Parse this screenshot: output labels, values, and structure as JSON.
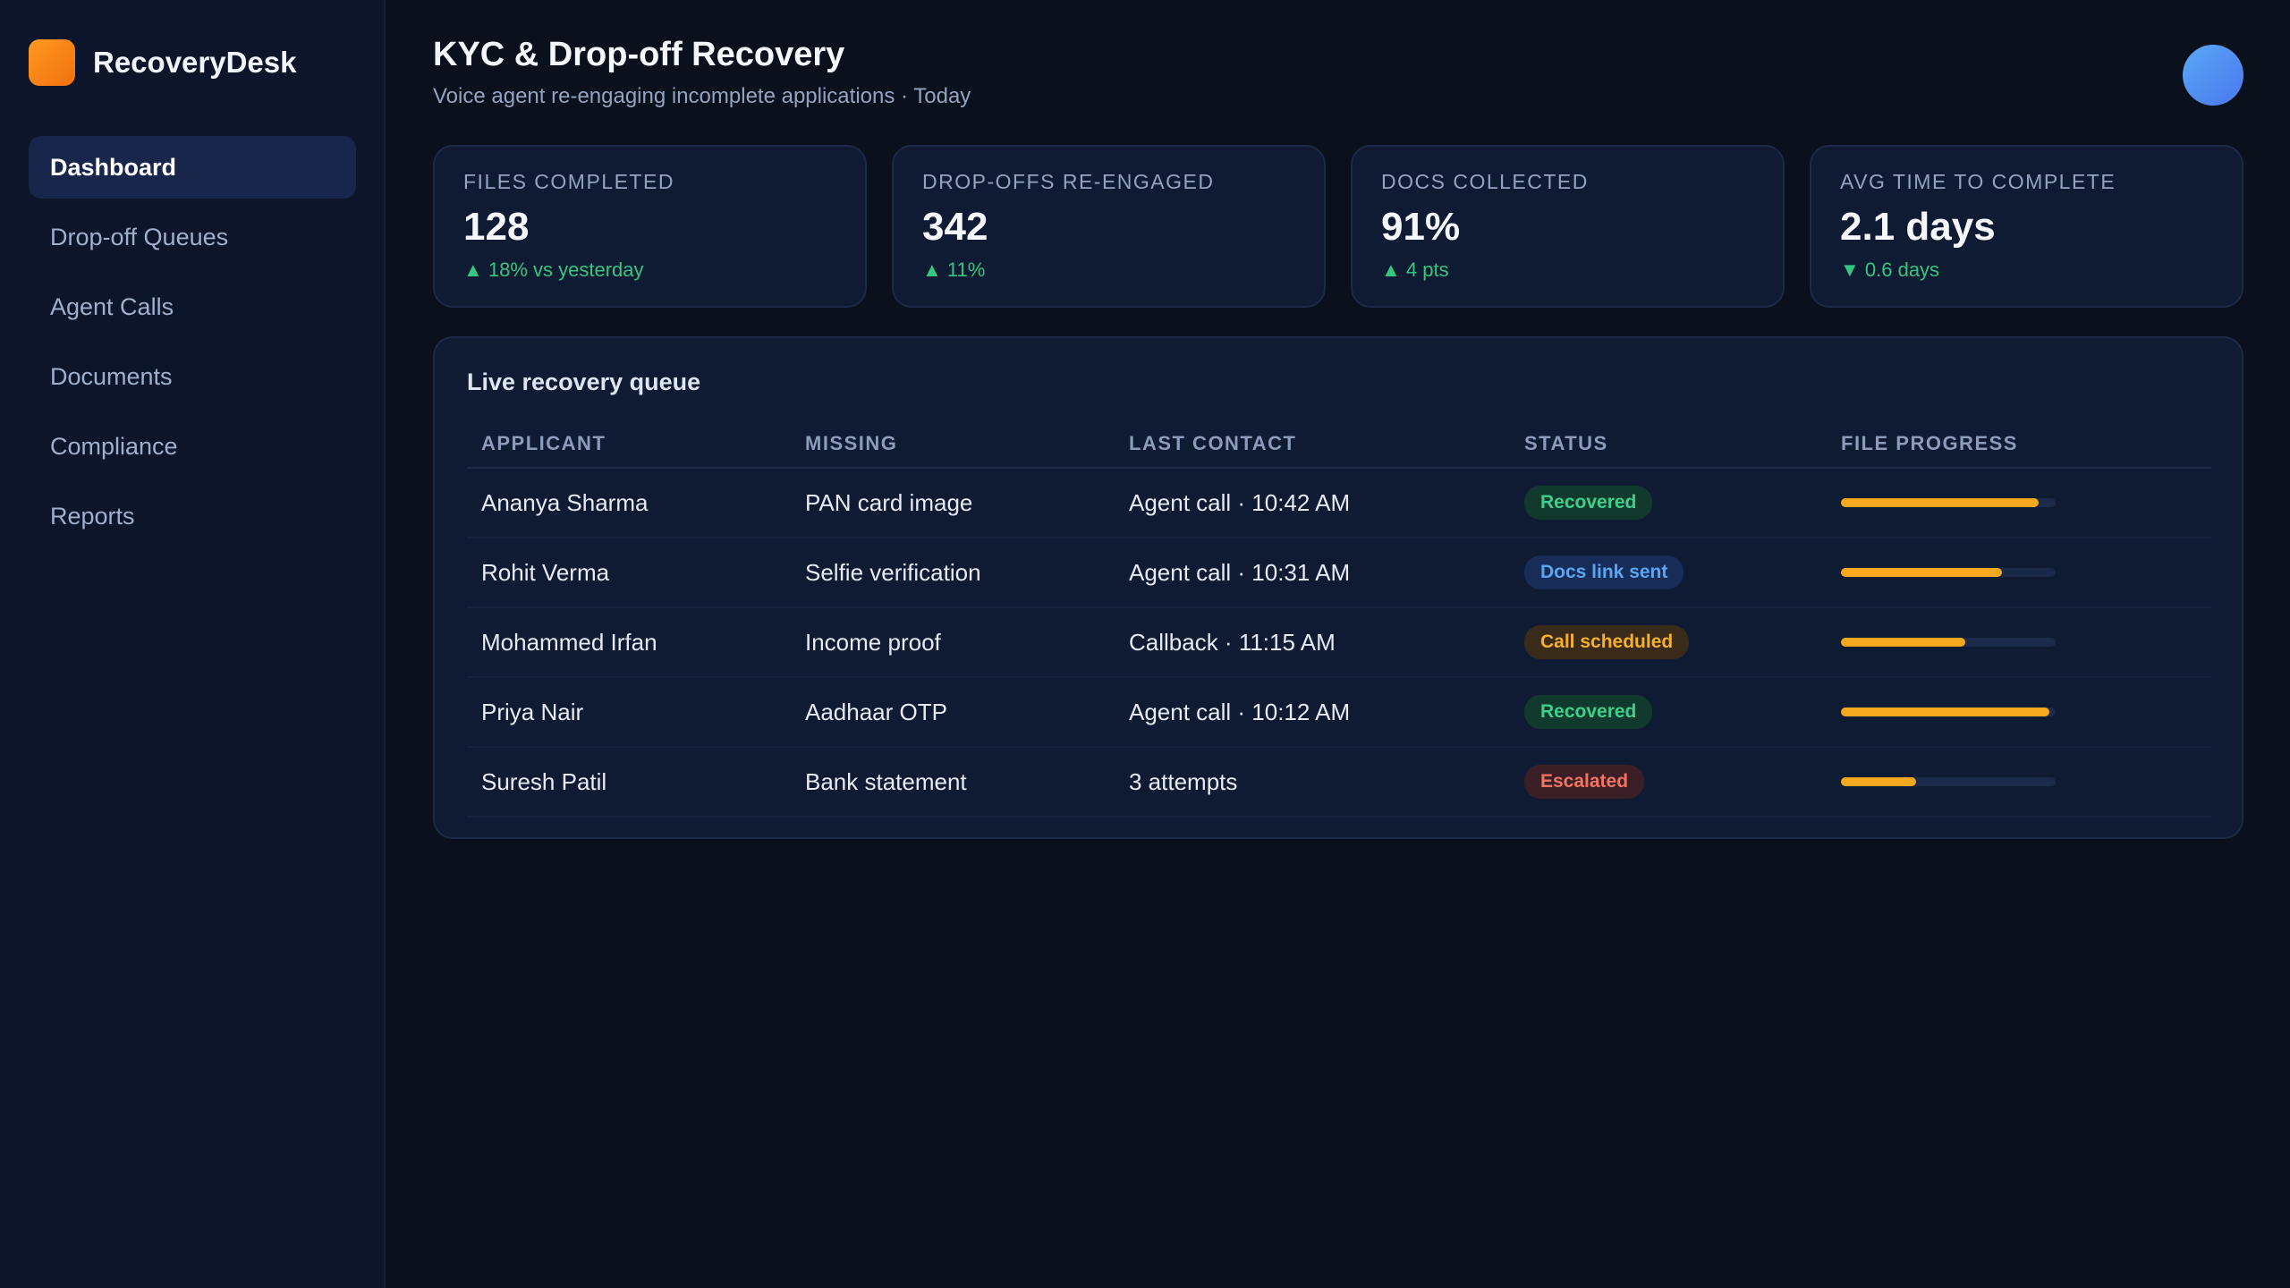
{
  "app": {
    "name": "RecoveryDesk"
  },
  "sidebar": {
    "items": [
      {
        "label": "Dashboard",
        "active": true
      },
      {
        "label": "Drop-off Queues",
        "active": false
      },
      {
        "label": "Agent Calls",
        "active": false
      },
      {
        "label": "Documents",
        "active": false
      },
      {
        "label": "Compliance",
        "active": false
      },
      {
        "label": "Reports",
        "active": false
      }
    ]
  },
  "header": {
    "title": "KYC & Drop-off Recovery",
    "subtitle": "Voice agent re-engaging incomplete applications · Today"
  },
  "kpis": [
    {
      "label": "FILES COMPLETED",
      "value": "128",
      "delta": "▲ 18% vs yesterday"
    },
    {
      "label": "DROP-OFFS RE-ENGAGED",
      "value": "342",
      "delta": "▲ 11%"
    },
    {
      "label": "DOCS COLLECTED",
      "value": "91%",
      "delta": "▲ 4 pts"
    },
    {
      "label": "AVG TIME TO COMPLETE",
      "value": "2.1 days",
      "delta": "▼ 0.6 days"
    }
  ],
  "queue": {
    "title": "Live recovery queue",
    "columns": [
      "APPLICANT",
      "MISSING",
      "LAST CONTACT",
      "STATUS",
      "FILE PROGRESS"
    ],
    "rows": [
      {
        "applicant": "Ananya Sharma",
        "missing": "PAN card image",
        "last_contact": "Agent call · 10:42 AM",
        "status": "Recovered",
        "status_type": "recovered",
        "progress": 0.92
      },
      {
        "applicant": "Rohit Verma",
        "missing": "Selfie verification",
        "last_contact": "Agent call · 10:31 AM",
        "status": "Docs link sent",
        "status_type": "docs",
        "progress": 0.75
      },
      {
        "applicant": "Mohammed Irfan",
        "missing": "Income proof",
        "last_contact": "Callback · 11:15 AM",
        "status": "Call scheduled",
        "status_type": "scheduled",
        "progress": 0.58
      },
      {
        "applicant": "Priya Nair",
        "missing": "Aadhaar OTP",
        "last_contact": "Agent call · 10:12 AM",
        "status": "Recovered",
        "status_type": "recovered",
        "progress": 0.97
      },
      {
        "applicant": "Suresh Patil",
        "missing": "Bank statement",
        "last_contact": "3 attempts",
        "status": "Escalated",
        "status_type": "escalated",
        "progress": 0.35
      }
    ]
  },
  "colors": {
    "accent": "#f6a81e",
    "success": "#34c77f",
    "background": "#0a101c",
    "panel": "#0f1a33"
  }
}
